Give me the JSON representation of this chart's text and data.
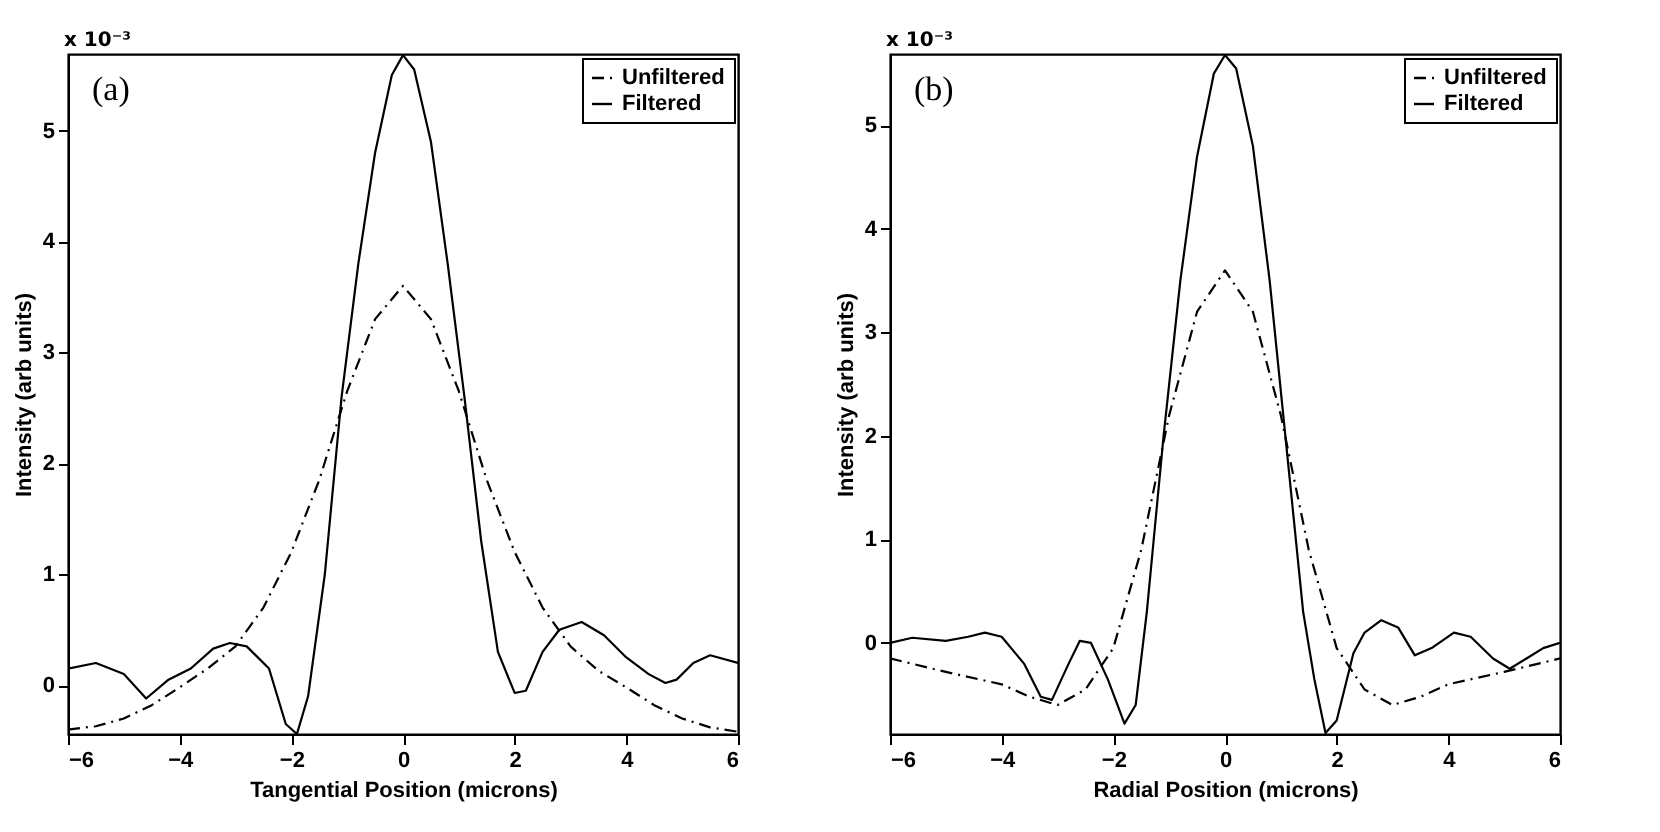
{
  "chart_data": [
    {
      "type": "line",
      "xlabel": "Tangential Position (microns)",
      "ylabel": "Intensity (arb units)",
      "annotations": [
        "(a)",
        "x 10⁻³"
      ],
      "xlim": [
        -6,
        6
      ],
      "xticks": [
        -6,
        -4,
        -2,
        0,
        2,
        4,
        6
      ],
      "ylim": [
        -0.44,
        5.69
      ],
      "yticks": [
        0,
        1,
        2,
        3,
        4,
        5
      ],
      "grid": false,
      "legend": "top right",
      "marker": "none",
      "series": [
        {
          "name": "Unfiltered",
          "color": "#000000",
          "line_style": "dashed",
          "x": [
            -6,
            -5.5,
            -5,
            -4.5,
            -4,
            -3.5,
            -3,
            -2.5,
            -2,
            -1.5,
            -1,
            -0.5,
            0,
            0.5,
            1,
            1.5,
            2,
            2.5,
            3,
            3.5,
            4,
            4.5,
            5,
            5.5,
            6
          ],
          "values": [
            -0.4,
            -0.37,
            -0.3,
            -0.18,
            -0.02,
            0.15,
            0.35,
            0.7,
            1.2,
            1.85,
            2.65,
            3.3,
            3.6,
            3.3,
            2.65,
            1.85,
            1.2,
            0.7,
            0.35,
            0.13,
            -0.02,
            -0.18,
            -0.3,
            -0.38,
            -0.42
          ]
        },
        {
          "name": "Filtered",
          "color": "#000000",
          "line_style": "solid",
          "x": [
            -6,
            -5.5,
            -5,
            -4.6,
            -4.2,
            -3.8,
            -3.4,
            -3.1,
            -2.8,
            -2.4,
            -2.1,
            -1.9,
            -1.7,
            -1.4,
            -1.1,
            -0.8,
            -0.5,
            -0.2,
            0,
            0.2,
            0.5,
            0.8,
            1.1,
            1.4,
            1.7,
            2.0,
            2.2,
            2.5,
            2.8,
            3.2,
            3.6,
            4.0,
            4.4,
            4.7,
            4.9,
            5.2,
            5.5,
            6
          ],
          "values": [
            0.15,
            0.2,
            0.1,
            -0.12,
            0.05,
            0.15,
            0.33,
            0.38,
            0.35,
            0.15,
            -0.35,
            -0.44,
            -0.1,
            1.0,
            2.6,
            3.8,
            4.8,
            5.5,
            5.68,
            5.55,
            4.9,
            3.8,
            2.6,
            1.3,
            0.3,
            -0.07,
            -0.05,
            0.3,
            0.5,
            0.57,
            0.45,
            0.25,
            0.1,
            0.02,
            0.05,
            0.2,
            0.27,
            0.2
          ]
        }
      ]
    },
    {
      "type": "line",
      "xlabel": "Radial Position (microns)",
      "ylabel": "Intensity (arb units)",
      "annotations": [
        "(b)",
        "x 10⁻³"
      ],
      "xlim": [
        -6,
        6
      ],
      "xticks": [
        -6,
        -4,
        -2,
        0,
        2,
        4,
        6
      ],
      "ylim": [
        -0.88,
        5.69
      ],
      "yticks": [
        0,
        1,
        2,
        3,
        4,
        5
      ],
      "grid": false,
      "legend": "top right",
      "marker": "none",
      "series": [
        {
          "name": "Unfiltered",
          "color": "#000000",
          "line_style": "dashed",
          "x": [
            -6,
            -5,
            -4,
            -3.5,
            -3,
            -2.5,
            -2,
            -1.5,
            -1,
            -0.5,
            0,
            0.5,
            1,
            1.5,
            2,
            2.5,
            3,
            3.5,
            4,
            5,
            6
          ],
          "values": [
            -0.15,
            -0.28,
            -0.4,
            -0.52,
            -0.6,
            -0.45,
            -0.05,
            0.9,
            2.2,
            3.2,
            3.6,
            3.2,
            2.2,
            0.9,
            -0.05,
            -0.45,
            -0.6,
            -0.52,
            -0.4,
            -0.28,
            -0.15
          ]
        },
        {
          "name": "Filtered",
          "color": "#000000",
          "line_style": "solid",
          "x": [
            -6,
            -5.6,
            -5,
            -4.6,
            -4.3,
            -4,
            -3.6,
            -3.3,
            -3.1,
            -2.8,
            -2.6,
            -2.4,
            -2.1,
            -1.8,
            -1.6,
            -1.4,
            -1.1,
            -0.8,
            -0.5,
            -0.2,
            0,
            0.2,
            0.5,
            0.8,
            1.1,
            1.4,
            1.6,
            1.8,
            2.0,
            2.3,
            2.5,
            2.8,
            3.1,
            3.4,
            3.7,
            4.1,
            4.4,
            4.8,
            5.1,
            5.4,
            5.7,
            6
          ],
          "values": [
            0,
            0.05,
            0.02,
            0.06,
            0.1,
            0.06,
            -0.2,
            -0.52,
            -0.55,
            -0.2,
            0.02,
            0,
            -0.35,
            -0.78,
            -0.6,
            0.3,
            2.0,
            3.5,
            4.7,
            5.5,
            5.68,
            5.55,
            4.8,
            3.5,
            1.9,
            0.3,
            -0.35,
            -0.87,
            -0.75,
            -0.1,
            0.1,
            0.22,
            0.15,
            -0.12,
            -0.05,
            0.1,
            0.06,
            -0.15,
            -0.25,
            -0.15,
            -0.05,
            0
          ]
        }
      ]
    }
  ]
}
